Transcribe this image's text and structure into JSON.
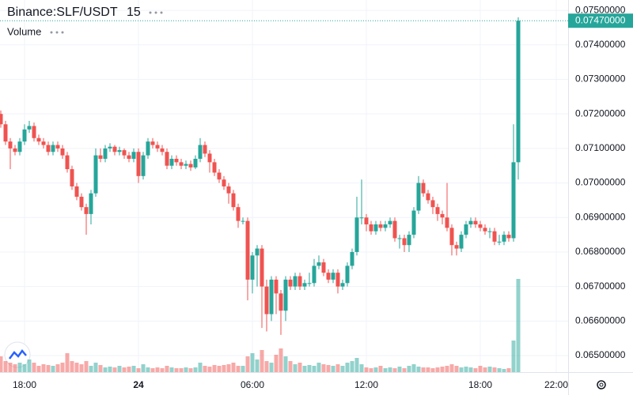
{
  "chart_data": {
    "type": "candlestick",
    "title": "Binance:SLF/USDT",
    "interval": "15",
    "volume_label": "Volume",
    "up_color": "#26a69a",
    "down_color": "#ef5350",
    "open": [
      0.072,
      0.0717,
      0.0712,
      0.071,
      0.0709,
      0.0712,
      0.07155,
      0.07165,
      0.0713,
      0.0712,
      0.0711,
      0.0709,
      0.0711,
      0.071,
      0.0708,
      0.0704,
      0.0699,
      0.0696,
      0.0693,
      0.0691,
      0.0697,
      0.0708,
      0.0707,
      0.071,
      0.07105,
      0.0709,
      0.07095,
      0.0708,
      0.0707,
      0.0709,
      0.0702,
      0.0708,
      0.0712,
      0.0711,
      0.071,
      0.0709,
      0.0705,
      0.0707,
      0.0706,
      0.0705,
      0.07055,
      0.07045,
      0.0707,
      0.0711,
      0.07085,
      0.0706,
      0.0703,
      0.0701,
      0.0699,
      0.0697,
      0.0693,
      0.0689,
      0.0689,
      0.0672,
      0.0679,
      0.0681,
      0.067,
      0.0662,
      0.0672,
      0.0668,
      0.0663,
      0.0672,
      0.067,
      0.0673,
      0.067,
      0.0671,
      0.0671,
      0.0676,
      0.0677,
      0.0674,
      0.0672,
      0.0674,
      0.067,
      0.0671,
      0.0676,
      0.068,
      0.069,
      0.069,
      0.0688,
      0.0686,
      0.0688,
      0.0687,
      0.0688,
      0.0689,
      0.0684,
      0.0684,
      0.0682,
      0.0685,
      0.0692,
      0.07,
      0.0697,
      0.0695,
      0.0693,
      0.0691,
      0.069,
      0.0687,
      0.0682,
      0.0681,
      0.0685,
      0.0688,
      0.0689,
      0.0688,
      0.0687,
      0.0686,
      0.0686,
      0.0683,
      0.0683,
      0.0685,
      0.0684,
      0.0706
    ],
    "high": [
      0.0721,
      0.0718,
      0.0713,
      0.0711,
      0.0713,
      0.0717,
      0.0718,
      0.07175,
      0.0714,
      0.0713,
      0.0712,
      0.0712,
      0.0712,
      0.0711,
      0.0709,
      0.0705,
      0.07,
      0.0697,
      0.0694,
      0.0698,
      0.071,
      0.071,
      0.0711,
      0.07115,
      0.0711,
      0.07105,
      0.071,
      0.0709,
      0.071,
      0.071,
      0.0709,
      0.0713,
      0.0713,
      0.0712,
      0.0711,
      0.071,
      0.0708,
      0.0708,
      0.0707,
      0.07065,
      0.07065,
      0.0708,
      0.0713,
      0.0712,
      0.07095,
      0.0707,
      0.0704,
      0.0702,
      0.07,
      0.0698,
      0.0694,
      0.069,
      0.069,
      0.068,
      0.0682,
      0.0682,
      0.0672,
      0.0673,
      0.0673,
      0.0669,
      0.0673,
      0.0673,
      0.0674,
      0.0674,
      0.0672,
      0.0674,
      0.0678,
      0.0679,
      0.0678,
      0.0675,
      0.0675,
      0.0675,
      0.0672,
      0.0677,
      0.0681,
      0.0696,
      0.0701,
      0.0691,
      0.0689,
      0.0689,
      0.0689,
      0.0689,
      0.069,
      0.069,
      0.0685,
      0.0685,
      0.0686,
      0.0693,
      0.0702,
      0.0701,
      0.0698,
      0.0696,
      0.0694,
      0.0692,
      0.07,
      0.0688,
      0.0683,
      0.0686,
      0.0689,
      0.069,
      0.069,
      0.0689,
      0.0688,
      0.0687,
      0.0687,
      0.0685,
      0.0686,
      0.0686,
      0.0717,
      0.0748
    ],
    "low": [
      0.0716,
      0.0711,
      0.0704,
      0.0708,
      0.0708,
      0.0711,
      0.07145,
      0.0712,
      0.0711,
      0.071,
      0.0708,
      0.0708,
      0.0709,
      0.0707,
      0.0703,
      0.0698,
      0.0695,
      0.0692,
      0.0685,
      0.0688,
      0.0696,
      0.0706,
      0.0706,
      0.0709,
      0.0708,
      0.0708,
      0.0707,
      0.0706,
      0.0706,
      0.07,
      0.0701,
      0.0707,
      0.071,
      0.0709,
      0.0708,
      0.0704,
      0.0704,
      0.0705,
      0.0704,
      0.0704,
      0.07035,
      0.0704,
      0.0706,
      0.07075,
      0.0703,
      0.0702,
      0.07,
      0.0698,
      0.0694,
      0.0692,
      0.0687,
      0.0688,
      0.0666,
      0.0668,
      0.067,
      0.0658,
      0.0657,
      0.066,
      0.0662,
      0.0656,
      0.066,
      0.0669,
      0.0669,
      0.0669,
      0.0669,
      0.067,
      0.067,
      0.0675,
      0.0673,
      0.0671,
      0.0671,
      0.0668,
      0.0669,
      0.067,
      0.0675,
      0.0679,
      0.0688,
      0.0686,
      0.0685,
      0.0685,
      0.0686,
      0.0686,
      0.0687,
      0.0683,
      0.0681,
      0.068,
      0.068,
      0.0684,
      0.0691,
      0.0696,
      0.0694,
      0.0691,
      0.0689,
      0.0688,
      0.0686,
      0.0679,
      0.0679,
      0.068,
      0.0684,
      0.0687,
      0.0687,
      0.0686,
      0.0685,
      0.0684,
      0.0682,
      0.0682,
      0.0682,
      0.0683,
      0.0683,
      0.0701
    ],
    "close": [
      0.0717,
      0.0712,
      0.071,
      0.0709,
      0.0712,
      0.07155,
      0.07165,
      0.0713,
      0.0712,
      0.0711,
      0.0709,
      0.0711,
      0.071,
      0.0708,
      0.0704,
      0.0699,
      0.0696,
      0.0693,
      0.0691,
      0.0697,
      0.0708,
      0.0707,
      0.071,
      0.07105,
      0.0709,
      0.07095,
      0.0708,
      0.0707,
      0.0709,
      0.0702,
      0.0708,
      0.0712,
      0.0711,
      0.071,
      0.0709,
      0.0705,
      0.0707,
      0.0706,
      0.0705,
      0.07055,
      0.07045,
      0.0707,
      0.0711,
      0.07085,
      0.0706,
      0.0703,
      0.0701,
      0.0699,
      0.0697,
      0.0693,
      0.0689,
      0.0689,
      0.0672,
      0.0679,
      0.0681,
      0.067,
      0.0662,
      0.0672,
      0.0668,
      0.0663,
      0.0672,
      0.067,
      0.0673,
      0.067,
      0.0671,
      0.0671,
      0.0676,
      0.0677,
      0.0674,
      0.0672,
      0.0674,
      0.067,
      0.0671,
      0.0676,
      0.068,
      0.069,
      0.069,
      0.0688,
      0.0686,
      0.0688,
      0.0687,
      0.0688,
      0.0689,
      0.0684,
      0.0684,
      0.0682,
      0.0685,
      0.0692,
      0.07,
      0.0697,
      0.0695,
      0.0693,
      0.0691,
      0.069,
      0.0687,
      0.0682,
      0.0681,
      0.0685,
      0.0688,
      0.0689,
      0.0688,
      0.0687,
      0.0686,
      0.0686,
      0.0683,
      0.0683,
      0.0685,
      0.0684,
      0.0706,
      0.0747
    ],
    "volume": [
      20,
      14,
      12,
      10,
      12,
      10,
      16,
      12,
      8,
      10,
      9,
      8,
      10,
      12,
      24,
      14,
      12,
      10,
      14,
      8,
      12,
      9,
      6,
      7,
      6,
      8,
      6,
      7,
      8,
      5,
      10,
      6,
      5,
      6,
      5,
      8,
      6,
      5,
      5,
      6,
      5,
      6,
      12,
      8,
      7,
      9,
      8,
      9,
      10,
      12,
      8,
      8,
      20,
      24,
      16,
      28,
      14,
      12,
      22,
      30,
      20,
      14,
      10,
      12,
      8,
      9,
      8,
      12,
      10,
      9,
      8,
      10,
      8,
      12,
      14,
      18,
      10,
      6,
      5,
      6,
      8,
      5,
      6,
      5,
      7,
      5,
      8,
      10,
      7,
      6,
      6,
      5,
      6,
      7,
      8,
      10,
      8,
      6,
      7,
      6,
      5,
      8,
      6,
      7,
      6,
      5,
      4,
      5,
      40,
      118
    ],
    "ylim": [
      0.06452,
      0.0753
    ],
    "yticks": [
      {
        "value": 0.065,
        "label": "0.06500000"
      },
      {
        "value": 0.066,
        "label": "0.06600000"
      },
      {
        "value": 0.067,
        "label": "0.06700000"
      },
      {
        "value": 0.068,
        "label": "0.06800000"
      },
      {
        "value": 0.069,
        "label": "0.06900000"
      },
      {
        "value": 0.07,
        "label": "0.07000000"
      },
      {
        "value": 0.071,
        "label": "0.07100000"
      },
      {
        "value": 0.072,
        "label": "0.07200000"
      },
      {
        "value": 0.073,
        "label": "0.07300000"
      },
      {
        "value": 0.074,
        "label": "0.07400000"
      },
      {
        "value": 0.075,
        "label": "0.07500000"
      }
    ],
    "xlim": [
      -0.1667,
      119.5
    ],
    "xticks": [
      {
        "value": 5,
        "label": "18:00"
      },
      {
        "value": 29,
        "label": "24"
      },
      {
        "value": 53,
        "label": "06:00"
      },
      {
        "value": 77,
        "label": "12:00"
      },
      {
        "value": 101,
        "label": "18:00"
      },
      {
        "value": 117,
        "label": "22:00"
      }
    ],
    "last_price": 0.0747,
    "last_price_label": "0.07470000"
  }
}
